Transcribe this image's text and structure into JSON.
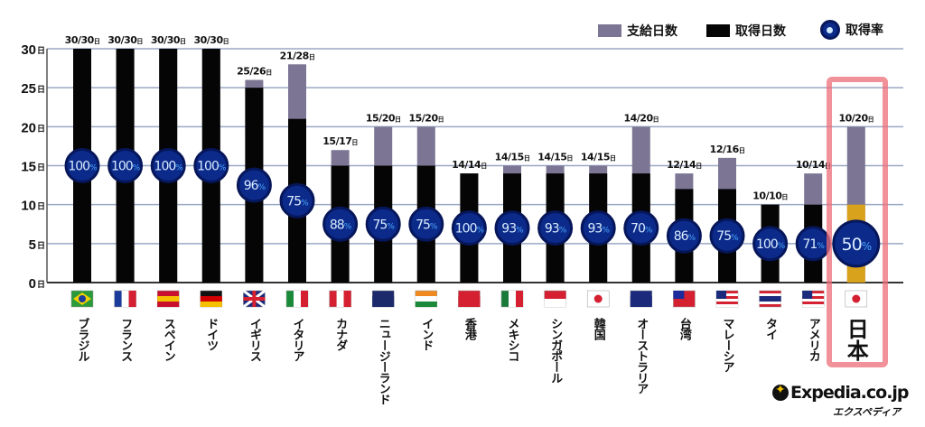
{
  "chart_data": {
    "type": "bar",
    "stacked_overlay": true,
    "y_unit": "日",
    "ylim": [
      0,
      30
    ],
    "yticks": [
      0,
      5,
      10,
      15,
      20,
      25,
      30
    ],
    "grid": true,
    "legend": {
      "placement": "top-right",
      "items": [
        {
          "label": "支給日数",
          "color": "#7c7694"
        },
        {
          "label": "取得日数",
          "color": "#050505"
        },
        {
          "label": "取得率",
          "color": "#0c2a8a"
        }
      ]
    },
    "categories": [
      "ブラジル",
      "フランス",
      "スペイン",
      "ドイツ",
      "イギリス",
      "イタリア",
      "カナダ",
      "ニュージーランド",
      "インド",
      "香港",
      "メキシコ",
      "シンガポール",
      "韓国",
      "オーストラリア",
      "台湾",
      "マレーシア",
      "タイ",
      "アメリカ",
      "日本"
    ],
    "series": [
      {
        "name": "支給日数",
        "values": [
          30,
          30,
          30,
          30,
          26,
          28,
          17,
          20,
          20,
          14,
          15,
          15,
          15,
          20,
          14,
          16,
          10,
          14,
          20
        ]
      },
      {
        "name": "取得日数",
        "values": [
          30,
          30,
          30,
          30,
          25,
          21,
          15,
          15,
          15,
          14,
          14,
          14,
          14,
          14,
          12,
          12,
          10,
          10,
          10
        ]
      },
      {
        "name": "取得率",
        "values": [
          100,
          100,
          100,
          100,
          96,
          75,
          88,
          75,
          75,
          100,
          93,
          93,
          93,
          70,
          86,
          75,
          100,
          71,
          50
        ],
        "unit": "%"
      }
    ],
    "bar_labels": [
      "30/30",
      "30/30",
      "30/30",
      "30/30",
      "25/26",
      "21/28",
      "15/17",
      "15/20",
      "15/20",
      "14/14",
      "14/15",
      "14/15",
      "14/15",
      "14/20",
      "12/14",
      "12/16",
      "10/10",
      "10/14",
      "10/20"
    ],
    "highlight": {
      "category": "日本",
      "taken_color": "#d9a21c",
      "outline_color": "#ec6e78"
    }
  },
  "flags": [
    {
      "country": "ブラジル",
      "colors": [
        "#2a9a3a",
        "#f5d000",
        "#1c3c9c"
      ],
      "style": "diamond"
    },
    {
      "country": "フランス",
      "colors": [
        "#1c3c9c",
        "#ffffff",
        "#d42030"
      ],
      "style": "v"
    },
    {
      "country": "スペイン",
      "colors": [
        "#c8102e",
        "#f5c000",
        "#c8102e"
      ],
      "style": "h"
    },
    {
      "country": "ドイツ",
      "colors": [
        "#111111",
        "#d00000",
        "#f5c000"
      ],
      "style": "h"
    },
    {
      "country": "イギリス",
      "colors": [
        "#1c2a7c",
        "#ffffff",
        "#d42030"
      ],
      "style": "cross"
    },
    {
      "country": "イタリア",
      "colors": [
        "#1a8a3a",
        "#ffffff",
        "#d42030"
      ],
      "style": "v"
    },
    {
      "country": "カナダ",
      "colors": [
        "#d42030",
        "#ffffff",
        "#d42030"
      ],
      "style": "v"
    },
    {
      "country": "ニュージーランド",
      "colors": [
        "#1c2a6c",
        "#1c2a6c",
        "#1c2a6c"
      ],
      "style": "h"
    },
    {
      "country": "インド",
      "colors": [
        "#f08a20",
        "#ffffff",
        "#1a8a3a"
      ],
      "style": "h"
    },
    {
      "country": "香港",
      "colors": [
        "#d42030",
        "#d42030",
        "#d42030"
      ],
      "style": "h"
    },
    {
      "country": "メキシコ",
      "colors": [
        "#1a7a3a",
        "#ffffff",
        "#d42030"
      ],
      "style": "v"
    },
    {
      "country": "シンガポール",
      "colors": [
        "#d42030",
        "#ffffff",
        "#ffffff"
      ],
      "style": "h2"
    },
    {
      "country": "韓国",
      "colors": [
        "#ffffff",
        "#d42030",
        "#1c3c9c"
      ],
      "style": "dot"
    },
    {
      "country": "オーストラリア",
      "colors": [
        "#1c2a7c",
        "#1c2a7c",
        "#1c2a7c"
      ],
      "style": "h"
    },
    {
      "country": "台湾",
      "colors": [
        "#d42030",
        "#d42030",
        "#1c2a9c"
      ],
      "style": "canton"
    },
    {
      "country": "マレーシア",
      "colors": [
        "#d42030",
        "#ffffff",
        "#1c2a7c"
      ],
      "style": "stripes"
    },
    {
      "country": "タイ",
      "colors": [
        "#d42030",
        "#ffffff",
        "#1c2a7c"
      ],
      "style": "thai"
    },
    {
      "country": "アメリカ",
      "colors": [
        "#d42030",
        "#ffffff",
        "#1c2a7c"
      ],
      "style": "stripes"
    },
    {
      "country": "日本",
      "colors": [
        "#ffffff",
        "#d42030",
        "#ffffff"
      ],
      "style": "dot"
    }
  ],
  "logo": {
    "text": "Expedia.co.jp",
    "sub": "エクスペディア"
  }
}
